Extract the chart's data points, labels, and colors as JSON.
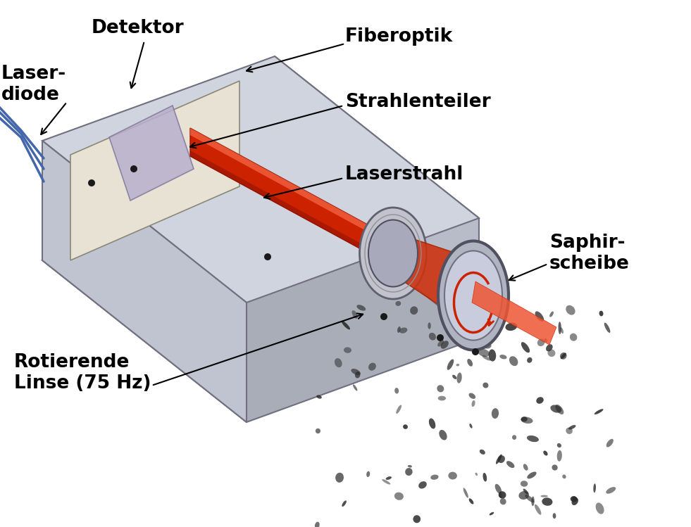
{
  "background_color": "#ffffff",
  "figsize": [
    9.81,
    7.49
  ],
  "dpi": 100,
  "labels": {
    "laser_diode": "Laser-\ndiode",
    "detektor": "Detektor",
    "fiberoptik": "Fiberoptik",
    "strahlenteiler": "Strahlenteiler",
    "laserstrahl": "Laserstrahl",
    "saphirscheibe": "Saphir-\nscheibe",
    "rotierende": "Rotierende\nLinse (75 Hz)"
  },
  "label_fontsize": 19,
  "label_fontweight": "bold",
  "label_color": "#000000"
}
